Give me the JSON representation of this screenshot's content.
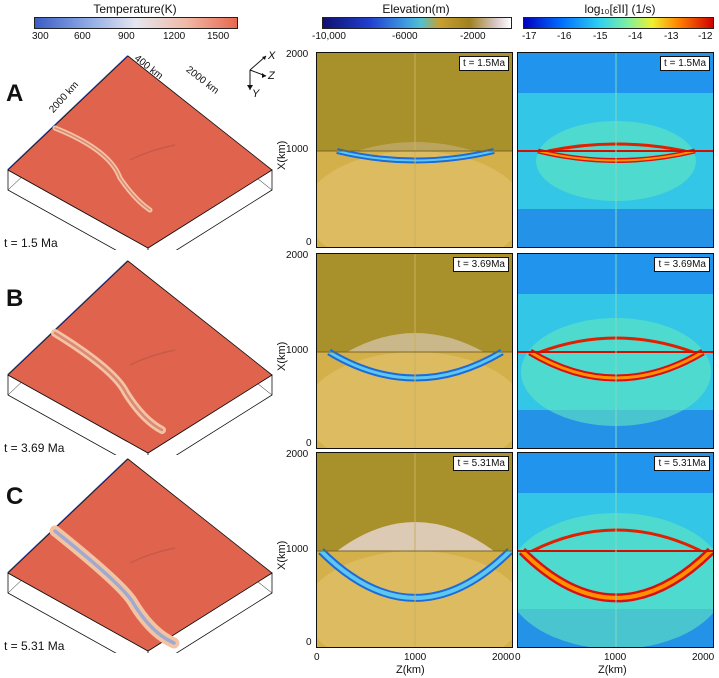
{
  "temp_colorbar": {
    "title": "Temperature(K)",
    "ticks": [
      "300",
      "600",
      "900",
      "1200",
      "1500"
    ]
  },
  "elev_colorbar": {
    "title": "Elevation(m)",
    "ticks": [
      "-10,000",
      "-6000",
      "-2000"
    ]
  },
  "strain_colorbar": {
    "title": "log₁₀[ε̇II] (1/s)",
    "ticks": [
      "-17",
      "-16",
      "-15",
      "-14",
      "-13",
      "-12"
    ]
  },
  "box3d": {
    "dim_x": "2000 km",
    "dim_z": "2000 km",
    "dim_y": "400 km",
    "axes": [
      "X",
      "Z",
      "Y"
    ]
  },
  "rows": [
    {
      "letter": "A",
      "time_left": "t = 1.5 Ma",
      "time_box_elev": "t = 1.5Ma",
      "time_box_strain": "t = 1.5Ma"
    },
    {
      "letter": "B",
      "time_left": "t = 3.69 Ma",
      "time_box_elev": "t = 3.69Ma",
      "time_box_strain": "t = 3.69Ma"
    },
    {
      "letter": "C",
      "time_left": "t = 5.31 Ma",
      "time_box_elev": "t = 5.31Ma",
      "time_box_strain": "t = 5.31Ma"
    }
  ],
  "map_axes": {
    "ylabel": "X(km)",
    "xlabel": "Z(km)",
    "yticks": [
      "2000",
      "1000",
      "0"
    ],
    "xticks": [
      "0",
      "1000",
      "2000"
    ]
  },
  "colors": {
    "slab_red": "#e0634e",
    "elev_bg": "#b99a2a",
    "strain_bg": "#33c6e6"
  }
}
